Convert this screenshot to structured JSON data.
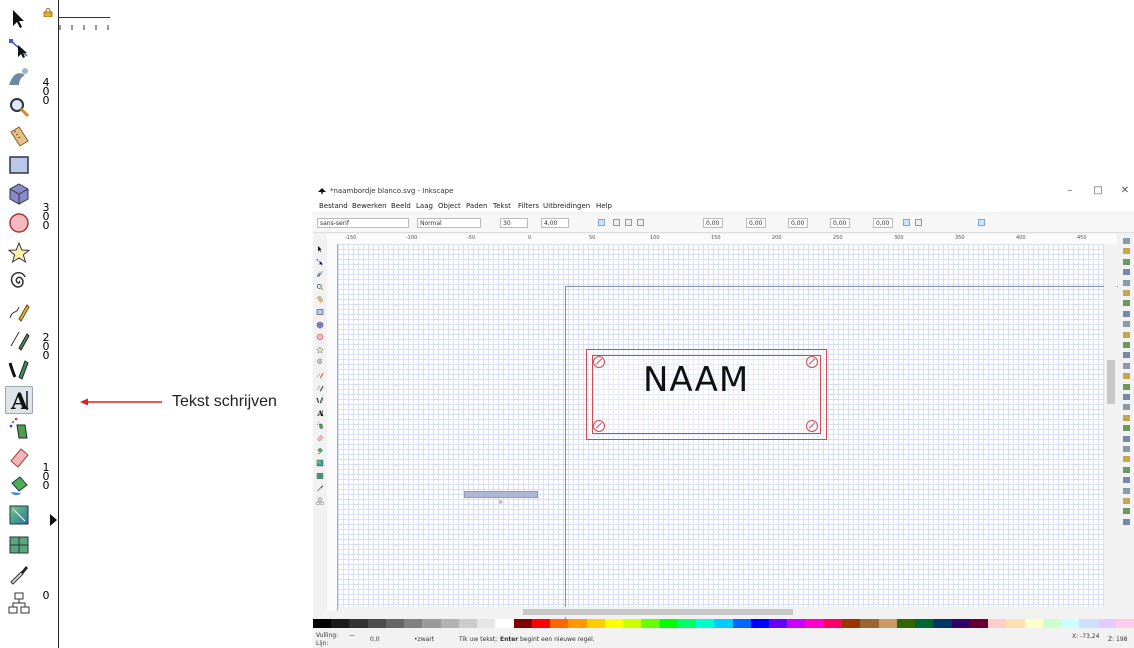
{
  "annotation": {
    "label": "Tekst schrijven"
  },
  "big_toolbar": {
    "tools": [
      "selector-tool",
      "node-tool",
      "tweak-tool",
      "zoom-tool",
      "measure-tool",
      "rectangle-tool",
      "box3d-tool",
      "ellipse-tool",
      "star-tool",
      "spiral-tool",
      "pencil-tool",
      "pen-tool",
      "calligraphy-tool",
      "text-tool",
      "spray-tool",
      "eraser-tool",
      "paint-bucket-tool",
      "gradient-tool",
      "mesh-tool",
      "dropper-tool",
      "connector-tool"
    ],
    "active_tool": "text-tool",
    "ruler_numbers": [
      "4\n0\n0",
      "3\n0\n0",
      "2\n0\n0",
      "1\n0\n0",
      "0"
    ]
  },
  "window": {
    "title": "*naambordje blanco.svg - Inkscape",
    "controls": [
      "–",
      "□",
      "✕"
    ],
    "menu": [
      "Bestand",
      "Bewerken",
      "Beeld",
      "Laag",
      "Object",
      "Paden",
      "Tekst",
      "Filters",
      "Uitbreidingen",
      "Help"
    ]
  },
  "text_toolbar": {
    "font_family": "sans-serif",
    "font_style": "Normal",
    "font_size": "30",
    "line_spacing": "4,00",
    "spacing_values": [
      "0,00",
      "0,00",
      "0,00",
      "0,00",
      "0,00"
    ]
  },
  "hruler_labels": [
    "-150",
    "-100",
    "-50",
    "0",
    "50",
    "100",
    "150",
    "200",
    "250",
    "300",
    "350",
    "400",
    "450"
  ],
  "canvas": {
    "nameplate_text": "NAAM"
  },
  "status": {
    "fill_label": "Vulling:",
    "stroke_label": "Lijn:",
    "fill_value": "—",
    "opacity_value": "0,0",
    "layer_value": "•zwart",
    "message_prefix": "Tik uw tekst;",
    "message_bold": "Enter",
    "message_suffix": "begint een nieuwe regel.",
    "coords": "X: -73,24",
    "zoom": "Z: 198"
  },
  "palette_colors": [
    "#000000",
    "#1a1a1a",
    "#333333",
    "#4d4d4d",
    "#666666",
    "#808080",
    "#999999",
    "#b3b3b3",
    "#cccccc",
    "#e6e6e6",
    "#ffffff",
    "#800000",
    "#ff0000",
    "#ff6600",
    "#ff9900",
    "#ffcc00",
    "#ffff00",
    "#ccff00",
    "#66ff00",
    "#00ff00",
    "#00ff66",
    "#00ffcc",
    "#00ccff",
    "#0066ff",
    "#0000ff",
    "#6600ff",
    "#cc00ff",
    "#ff00cc",
    "#ff0066",
    "#993300",
    "#996633",
    "#cc9966",
    "#336600",
    "#006633",
    "#003366",
    "#330066",
    "#660033",
    "#ffcccc",
    "#ffe0b3",
    "#ffffcc",
    "#ccffcc",
    "#ccffff",
    "#cce0ff",
    "#e0ccff",
    "#ffccee"
  ]
}
